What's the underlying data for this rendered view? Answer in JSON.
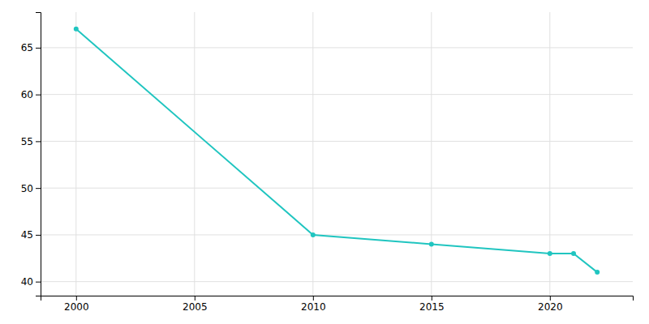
{
  "chart_data": {
    "type": "line",
    "x": [
      2000,
      2010,
      2015,
      2020,
      2021,
      2022
    ],
    "values": [
      67,
      45,
      44,
      43,
      43,
      41
    ],
    "color": "#20c5c0",
    "marker": "circle",
    "xlim": [
      1998.5,
      2023.5
    ],
    "ylim": [
      38.5,
      68.8
    ],
    "xticks": [
      2000,
      2005,
      2010,
      2015,
      2020
    ],
    "yticks": [
      40,
      45,
      50,
      55,
      60,
      65
    ],
    "grid": true
  }
}
